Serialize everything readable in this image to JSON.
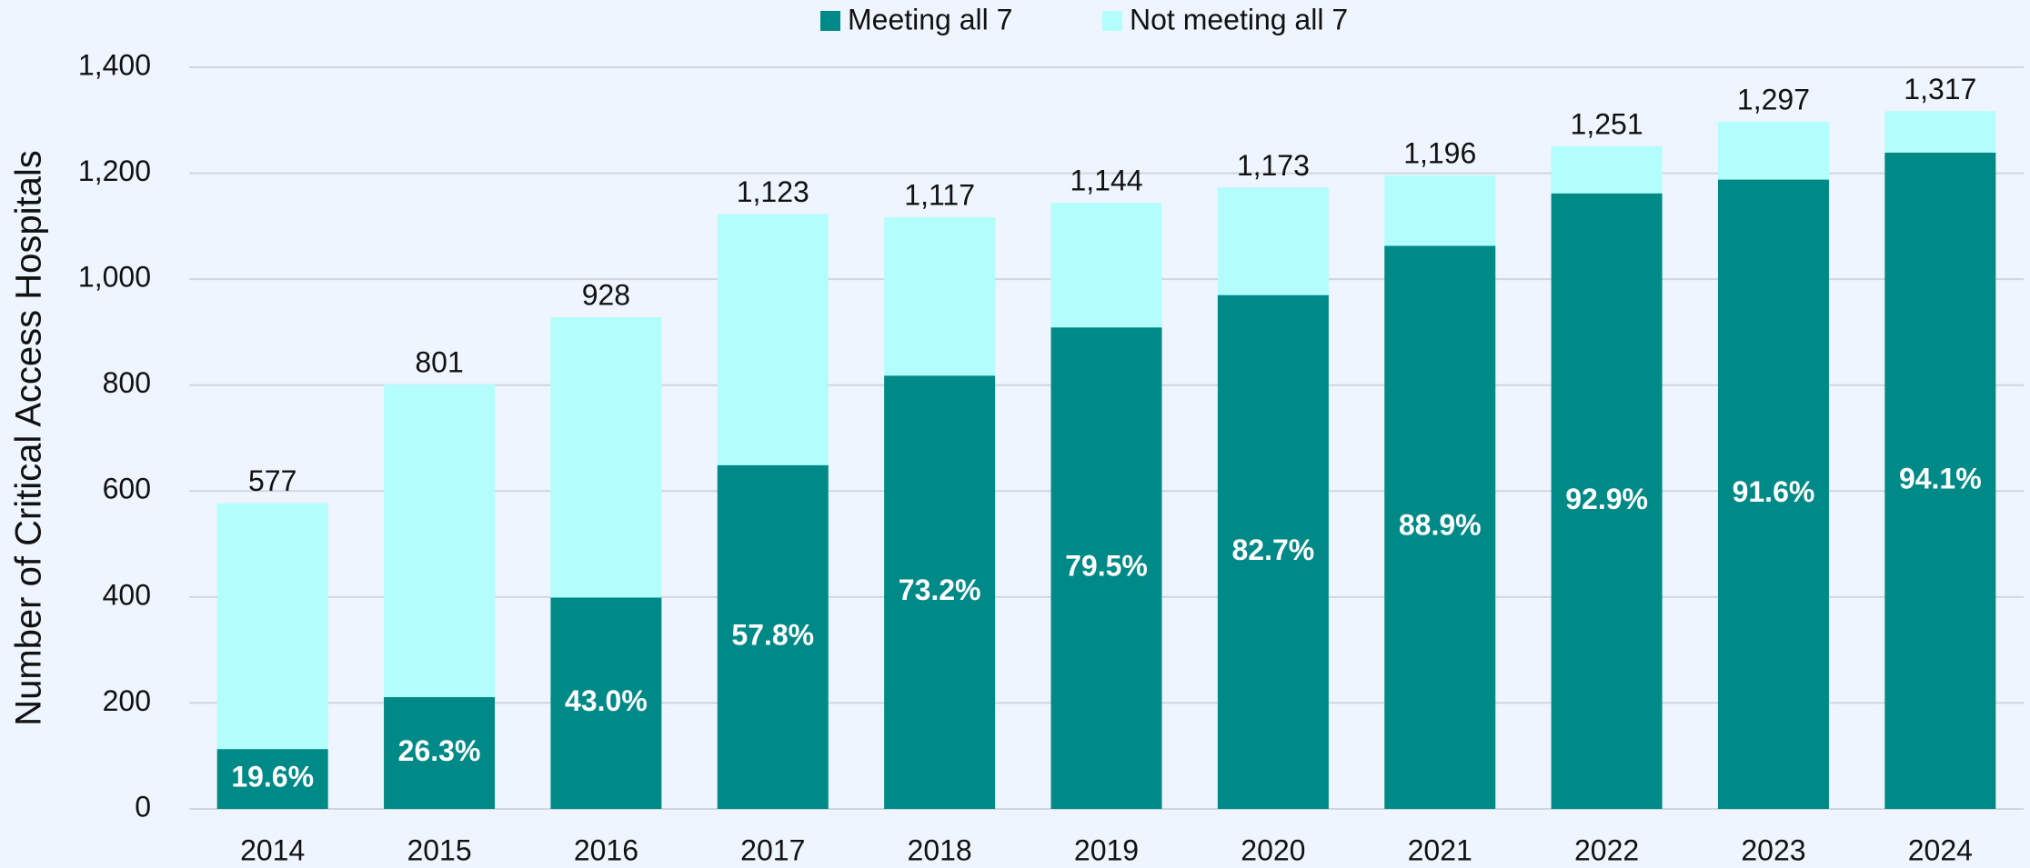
{
  "chart_data": {
    "type": "stacked_bar",
    "y_axis_label": "Number of Critical Access Hospitals",
    "categories": [
      "2014",
      "2015",
      "2016",
      "2017",
      "2018",
      "2019",
      "2020",
      "2021",
      "2022",
      "2023",
      "2024"
    ],
    "series": [
      {
        "name": "Meeting all 7",
        "color": "#008a87",
        "values": [
          113,
          211,
          399,
          649,
          818,
          909,
          970,
          1063,
          1162,
          1188,
          1239
        ],
        "value_labels": [
          "19.6%",
          "26.3%",
          "43.0%",
          "57.8%",
          "73.2%",
          "79.5%",
          "82.7%",
          "88.9%",
          "92.9%",
          "91.6%",
          "94.1%"
        ]
      },
      {
        "name": "Not meeting all 7",
        "color": "#b3fdfc",
        "values": [
          464,
          590,
          529,
          474,
          299,
          235,
          203,
          133,
          89,
          109,
          78
        ]
      }
    ],
    "totals": [
      577,
      801,
      928,
      1123,
      1117,
      1144,
      1173,
      1196,
      1251,
      1297,
      1317
    ],
    "total_labels": [
      "577",
      "801",
      "928",
      "1,123",
      "1,117",
      "1,144",
      "1,173",
      "1,196",
      "1,251",
      "1,297",
      "1,317"
    ],
    "ylim": [
      0,
      1400
    ],
    "yticks": [
      0,
      200,
      400,
      600,
      800,
      {
        "value": 1000,
        "label": "1,000"
      },
      {
        "value": 1200,
        "label": "1,200"
      },
      {
        "value": 1400,
        "label": "1,400"
      }
    ],
    "grid": true,
    "legend": "top"
  }
}
